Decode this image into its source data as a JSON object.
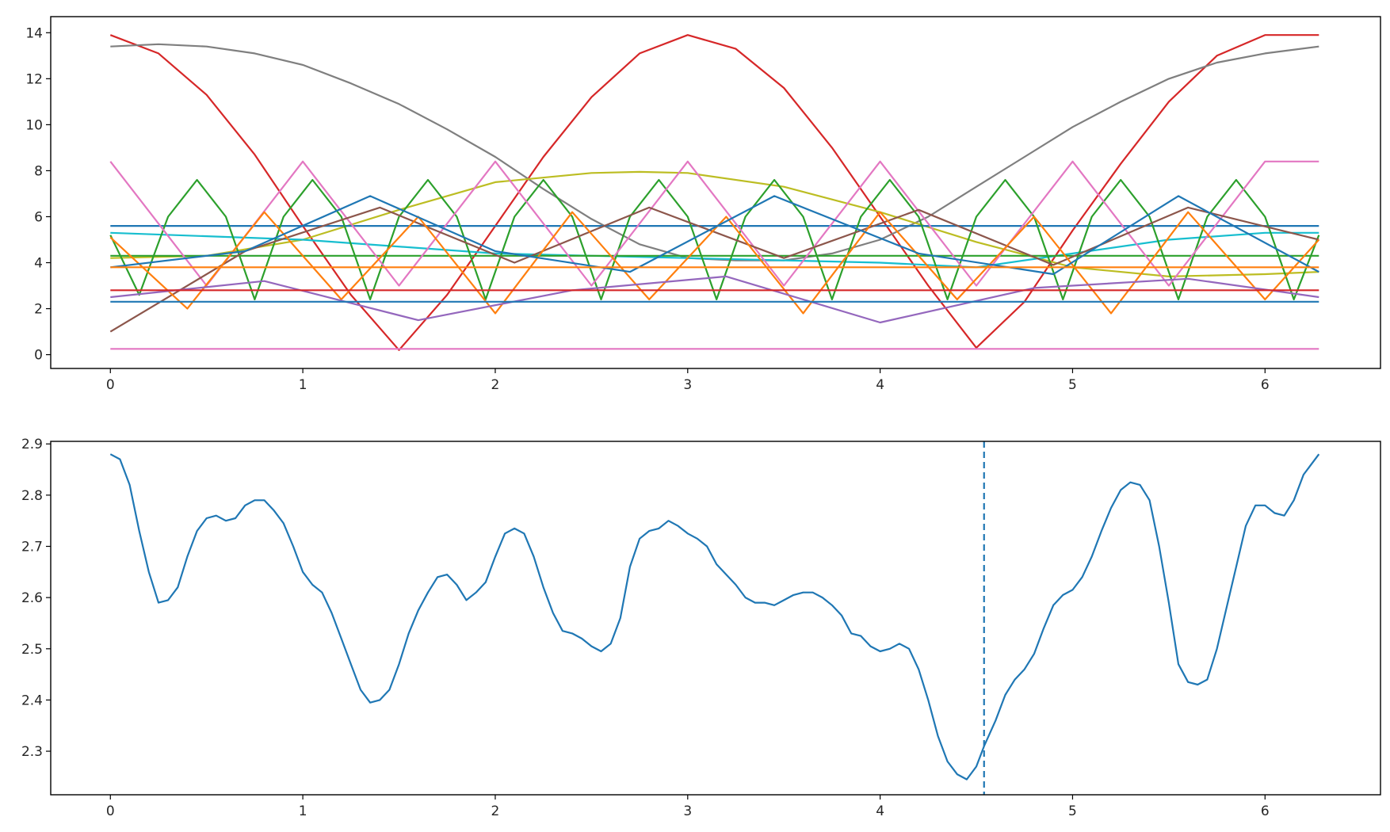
{
  "chart_data": [
    {
      "type": "line",
      "title": "",
      "xlabel": "",
      "ylabel": "",
      "xlim": [
        -0.31,
        6.6
      ],
      "ylim": [
        -0.6,
        14.7
      ],
      "xticks": [
        0,
        1,
        2,
        3,
        4,
        5,
        6
      ],
      "yticks": [
        0,
        2,
        4,
        6,
        8,
        10,
        12,
        14
      ],
      "xtick_labels": [
        "0",
        "1",
        "2",
        "3",
        "4",
        "5",
        "6"
      ],
      "ytick_labels": [
        "0",
        "2",
        "4",
        "6",
        "8",
        "10",
        "12",
        "14"
      ],
      "grid": false,
      "legend": "none",
      "note_series_count": "many overlapping curves over x from 0 to 6.28; representative series listed",
      "series": [
        {
          "color": "#d62728",
          "x": [
            0,
            0.25,
            0.5,
            0.75,
            1.0,
            1.25,
            1.5,
            1.75,
            2.0,
            2.25,
            2.5,
            2.75,
            3.0,
            3.25,
            3.5,
            3.75,
            4.0,
            4.25,
            4.5,
            4.75,
            5.0,
            5.25,
            5.5,
            5.75,
            6.0,
            6.28
          ],
          "y": [
            13.9,
            13.1,
            11.3,
            8.7,
            5.6,
            2.6,
            0.2,
            2.6,
            5.6,
            8.6,
            11.2,
            13.1,
            13.9,
            13.3,
            11.6,
            9.0,
            6.0,
            3.0,
            0.3,
            2.3,
            5.4,
            8.3,
            11.0,
            13.0,
            13.9,
            13.9
          ]
        },
        {
          "color": "#7f7f7f",
          "x": [
            0,
            0.25,
            0.5,
            0.75,
            1.0,
            1.25,
            1.5,
            1.75,
            2.0,
            2.25,
            2.5,
            2.75,
            3.0,
            3.25,
            3.5,
            3.75,
            4.0,
            4.25,
            4.5,
            4.75,
            5.0,
            5.25,
            5.5,
            5.75,
            6.0,
            6.28
          ],
          "y": [
            13.4,
            13.5,
            13.4,
            13.1,
            12.6,
            11.8,
            10.9,
            9.8,
            8.6,
            7.2,
            5.9,
            4.8,
            4.2,
            4.1,
            4.1,
            4.4,
            5.0,
            6.0,
            7.3,
            8.6,
            9.9,
            11.0,
            12.0,
            12.7,
            13.1,
            13.4
          ]
        },
        {
          "color": "#bcbd22",
          "x": [
            0,
            0.5,
            1.0,
            1.5,
            2.0,
            2.5,
            2.75,
            3.0,
            3.5,
            4.0,
            4.5,
            5.0,
            5.5,
            6.0,
            6.28
          ],
          "y": [
            4.2,
            4.3,
            5.0,
            6.3,
            7.5,
            7.9,
            7.95,
            7.9,
            7.3,
            6.2,
            4.9,
            3.8,
            3.4,
            3.5,
            3.6
          ]
        },
        {
          "color": "#1f77b4",
          "x": [
            0,
            6.28
          ],
          "y": [
            5.6,
            5.6
          ]
        },
        {
          "color": "#17becf",
          "x": [
            0,
            1.0,
            2.0,
            3.0,
            4.0,
            4.5,
            5.0,
            5.5,
            6.0,
            6.28
          ],
          "y": [
            5.3,
            5.0,
            4.4,
            4.2,
            4.0,
            3.8,
            4.4,
            5.0,
            5.3,
            5.3
          ]
        },
        {
          "color": "#2ca02c",
          "x": [
            0,
            6.28
          ],
          "y": [
            4.3,
            4.3
          ]
        },
        {
          "color": "#2ca02c",
          "x": [
            0,
            0.15,
            0.3,
            0.45,
            0.6,
            0.75,
            0.9,
            1.05,
            1.2,
            1.35,
            1.5,
            1.65,
            1.8,
            1.95,
            2.1,
            2.25,
            2.4,
            2.55,
            2.7,
            2.85,
            3.0,
            3.15,
            3.3,
            3.45,
            3.6,
            3.75,
            3.9,
            4.05,
            4.2,
            4.35,
            4.5,
            4.65,
            4.8,
            4.95,
            5.1,
            5.25,
            5.4,
            5.55,
            5.7,
            5.85,
            6.0,
            6.15,
            6.28
          ],
          "y": [
            5.2,
            2.6,
            6.0,
            7.6,
            6.0,
            2.4,
            6.0,
            7.6,
            6.0,
            2.4,
            6.0,
            7.6,
            6.0,
            2.4,
            6.0,
            7.6,
            6.0,
            2.4,
            6.0,
            7.6,
            6.0,
            2.4,
            6.0,
            7.6,
            6.0,
            2.4,
            6.0,
            7.6,
            6.0,
            2.4,
            6.0,
            7.6,
            6.0,
            2.4,
            6.0,
            7.6,
            6.0,
            2.4,
            6.0,
            7.6,
            6.0,
            2.4,
            5.2
          ]
        },
        {
          "color": "#e377c2",
          "x": [
            0,
            0.5,
            1.0,
            1.5,
            2.0,
            2.5,
            3.0,
            3.5,
            4.0,
            4.5,
            5.0,
            5.5,
            6.0,
            6.28
          ],
          "y": [
            8.4,
            3.0,
            8.4,
            3.0,
            8.4,
            3.0,
            8.4,
            3.0,
            8.4,
            3.0,
            8.4,
            3.0,
            8.4,
            8.4
          ]
        },
        {
          "color": "#8c564b",
          "x": [
            0,
            0.7,
            1.4,
            2.1,
            2.8,
            3.5,
            4.2,
            4.9,
            5.6,
            6.28
          ],
          "y": [
            1.0,
            4.5,
            6.4,
            4.0,
            6.4,
            4.2,
            6.3,
            3.9,
            6.4,
            5.0
          ]
        },
        {
          "color": "#ff7f0e",
          "x": [
            0,
            0.4,
            0.8,
            1.2,
            1.6,
            2.0,
            2.4,
            2.8,
            3.2,
            3.6,
            4.0,
            4.4,
            4.8,
            5.2,
            5.6,
            6.0,
            6.28
          ],
          "y": [
            5.1,
            2.0,
            6.2,
            2.4,
            6.0,
            1.8,
            6.2,
            2.4,
            6.0,
            1.8,
            6.2,
            2.4,
            6.0,
            1.8,
            6.2,
            2.4,
            5.0
          ]
        },
        {
          "color": "#1f77b4",
          "x": [
            0,
            0.7,
            1.35,
            2.0,
            2.7,
            3.45,
            4.2,
            4.9,
            5.55,
            6.28
          ],
          "y": [
            3.8,
            4.5,
            6.9,
            4.5,
            3.6,
            6.9,
            4.4,
            3.5,
            6.9,
            3.6
          ]
        },
        {
          "color": "#9467bd",
          "x": [
            0,
            0.8,
            1.6,
            2.4,
            3.2,
            4.0,
            4.8,
            5.6,
            6.28
          ],
          "y": [
            2.5,
            3.2,
            1.5,
            2.8,
            3.4,
            1.4,
            2.9,
            3.3,
            2.5
          ]
        },
        {
          "color": "#e377c2",
          "x": [
            0,
            6.28
          ],
          "y": [
            0.25,
            0.25
          ]
        },
        {
          "color": "#d62728",
          "x": [
            0,
            6.28
          ],
          "y": [
            2.8,
            2.8
          ]
        },
        {
          "color": "#ff7f0e",
          "x": [
            0,
            6.28
          ],
          "y": [
            3.8,
            3.8
          ]
        },
        {
          "color": "#1f77b4",
          "x": [
            0,
            6.28
          ],
          "y": [
            2.3,
            2.3
          ]
        }
      ]
    },
    {
      "type": "line",
      "title": "",
      "xlabel": "",
      "ylabel": "",
      "xlim": [
        -0.31,
        6.6
      ],
      "ylim": [
        2.215,
        2.905
      ],
      "xticks": [
        0,
        1,
        2,
        3,
        4,
        5,
        6
      ],
      "yticks": [
        2.3,
        2.4,
        2.5,
        2.6,
        2.7,
        2.8,
        2.9
      ],
      "xtick_labels": [
        "0",
        "1",
        "2",
        "3",
        "4",
        "5",
        "6"
      ],
      "ytick_labels": [
        "2.3",
        "2.4",
        "2.5",
        "2.6",
        "2.7",
        "2.8",
        "2.9"
      ],
      "grid": false,
      "legend": "none",
      "series": [
        {
          "color": "#1f77b4",
          "x": [
            0,
            0.05,
            0.1,
            0.15,
            0.2,
            0.25,
            0.3,
            0.35,
            0.4,
            0.45,
            0.5,
            0.55,
            0.6,
            0.65,
            0.7,
            0.75,
            0.8,
            0.85,
            0.9,
            0.95,
            1.0,
            1.05,
            1.1,
            1.15,
            1.2,
            1.25,
            1.3,
            1.35,
            1.4,
            1.45,
            1.5,
            1.55,
            1.6,
            1.65,
            1.7,
            1.75,
            1.8,
            1.85,
            1.9,
            1.95,
            2.0,
            2.05,
            2.1,
            2.15,
            2.2,
            2.25,
            2.3,
            2.35,
            2.4,
            2.45,
            2.5,
            2.55,
            2.6,
            2.65,
            2.7,
            2.75,
            2.8,
            2.85,
            2.9,
            2.95,
            3.0,
            3.05,
            3.1,
            3.15,
            3.2,
            3.25,
            3.3,
            3.35,
            3.4,
            3.45,
            3.5,
            3.55,
            3.6,
            3.65,
            3.7,
            3.75,
            3.8,
            3.85,
            3.9,
            3.95,
            4.0,
            4.05,
            4.1,
            4.15,
            4.2,
            4.25,
            4.3,
            4.35,
            4.4,
            4.45,
            4.5,
            4.54,
            4.6,
            4.65,
            4.7,
            4.75,
            4.8,
            4.85,
            4.9,
            4.95,
            5.0,
            5.05,
            5.1,
            5.15,
            5.2,
            5.25,
            5.3,
            5.35,
            5.4,
            5.45,
            5.5,
            5.55,
            5.6,
            5.65,
            5.7,
            5.75,
            5.8,
            5.85,
            5.9,
            5.95,
            6.0,
            6.05,
            6.1,
            6.15,
            6.2,
            6.28
          ],
          "y": [
            2.88,
            2.87,
            2.82,
            2.73,
            2.65,
            2.59,
            2.595,
            2.62,
            2.68,
            2.73,
            2.755,
            2.76,
            2.75,
            2.755,
            2.78,
            2.79,
            2.79,
            2.77,
            2.745,
            2.7,
            2.65,
            2.625,
            2.61,
            2.57,
            2.52,
            2.47,
            2.42,
            2.395,
            2.4,
            2.42,
            2.47,
            2.53,
            2.575,
            2.61,
            2.64,
            2.645,
            2.625,
            2.595,
            2.61,
            2.63,
            2.68,
            2.725,
            2.735,
            2.725,
            2.68,
            2.62,
            2.57,
            2.535,
            2.53,
            2.52,
            2.505,
            2.495,
            2.51,
            2.56,
            2.66,
            2.715,
            2.73,
            2.735,
            2.75,
            2.74,
            2.725,
            2.715,
            2.7,
            2.665,
            2.645,
            2.625,
            2.6,
            2.59,
            2.59,
            2.585,
            2.595,
            2.605,
            2.61,
            2.61,
            2.6,
            2.585,
            2.565,
            2.53,
            2.525,
            2.505,
            2.495,
            2.5,
            2.51,
            2.5,
            2.46,
            2.4,
            2.33,
            2.28,
            2.255,
            2.245,
            2.27,
            2.31,
            2.36,
            2.41,
            2.44,
            2.46,
            2.49,
            2.54,
            2.585,
            2.605,
            2.615,
            2.64,
            2.68,
            2.73,
            2.775,
            2.81,
            2.825,
            2.82,
            2.79,
            2.7,
            2.59,
            2.47,
            2.435,
            2.43,
            2.44,
            2.5,
            2.58,
            2.66,
            2.74,
            2.78,
            2.78,
            2.765,
            2.76,
            2.79,
            2.84,
            2.88
          ]
        }
      ],
      "reference_line": {
        "type": "vertical",
        "x": 4.54,
        "style": "dashed",
        "color": "#1f77b4"
      }
    }
  ]
}
